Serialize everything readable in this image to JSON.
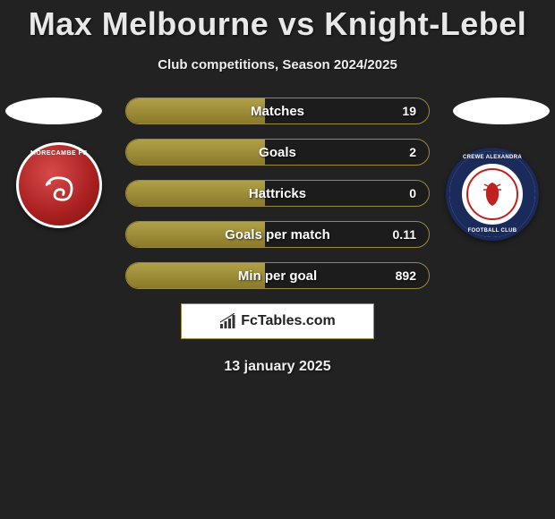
{
  "title": "Max Melbourne vs Knight-Lebel",
  "subtitle": "Club competitions, Season 2024/2025",
  "date": "13 january 2025",
  "brand": "FcTables.com",
  "left_club": {
    "name": "MORECAMBE FC",
    "badge_bg": "#a81f1f",
    "badge_border": "#ffffff"
  },
  "right_club": {
    "name_top": "CREWE ALEXANDRA",
    "name_bottom": "FOOTBALL CLUB",
    "ring_color": "#1a2a5a",
    "inner_border": "#c02020"
  },
  "stats": [
    {
      "label": "Matches",
      "value": "19",
      "fill_pct": 46
    },
    {
      "label": "Goals",
      "value": "2",
      "fill_pct": 46
    },
    {
      "label": "Hattricks",
      "value": "0",
      "fill_pct": 46
    },
    {
      "label": "Goals per match",
      "value": "0.11",
      "fill_pct": 46
    },
    {
      "label": "Min per goal",
      "value": "892",
      "fill_pct": 46
    }
  ],
  "colors": {
    "page_bg": "#222222",
    "bar_border": "#9a8a3a",
    "bar_fill_top": "#b0a048",
    "bar_fill_bottom": "#8a7a2a",
    "title_color": "#e8e8e8",
    "text_color": "#ffffff"
  },
  "typography": {
    "title_fontsize": 36,
    "subtitle_fontsize": 15,
    "stat_label_fontsize": 15,
    "stat_value_fontsize": 14,
    "date_fontsize": 16
  }
}
